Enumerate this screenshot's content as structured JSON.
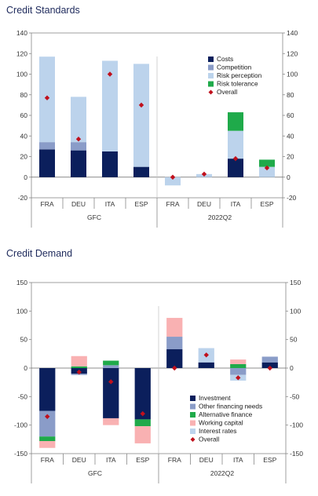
{
  "colors": {
    "navy": "#0b1f5c",
    "steel": "#8a9cc8",
    "lightblue": "#bcd3ec",
    "green": "#1faa4a",
    "pink": "#f9b1b2",
    "diamond": "#c0101c"
  },
  "chart_data": [
    {
      "type": "bar",
      "title": "Credit Standards",
      "stacked": true,
      "categories": [
        "FRA",
        "DEU",
        "ITA",
        "ESP",
        "FRA",
        "DEU",
        "ITA",
        "ESP"
      ],
      "groups": [
        {
          "label": "GFC"
        },
        {
          "label": "2022Q2"
        }
      ],
      "ylim": [
        -20,
        140
      ],
      "yticks": [
        "-20",
        "0",
        "20",
        "40",
        "60",
        "80",
        "100",
        "120",
        "140"
      ],
      "grid": false,
      "legend_position": "right",
      "series": [
        {
          "name": "Costs",
          "color": "#0b1f5c",
          "values": [
            27,
            26,
            25,
            10,
            0,
            0,
            18,
            0
          ]
        },
        {
          "name": "Competition",
          "color": "#8a9cc8",
          "values": [
            7,
            8,
            0,
            0,
            0,
            0,
            0,
            0
          ]
        },
        {
          "name": "Risk perception",
          "color": "#bcd3ec",
          "values": [
            83,
            44,
            88,
            100,
            -8,
            3,
            27,
            10
          ]
        },
        {
          "name": "Risk tolerance",
          "color": "#1faa4a",
          "values": [
            0,
            0,
            0,
            0,
            0,
            0,
            18,
            7
          ]
        }
      ],
      "overall": {
        "name": "Overall",
        "values": [
          77,
          37,
          100,
          70,
          0,
          3,
          18,
          9
        ]
      }
    },
    {
      "type": "bar",
      "title": "Credit Demand",
      "stacked": true,
      "categories": [
        "FRA",
        "DEU",
        "ITA",
        "ESP",
        "FRA",
        "DEU",
        "ITA",
        "ESP"
      ],
      "groups": [
        {
          "label": "GFC"
        },
        {
          "label": "2022Q2"
        }
      ],
      "ylim": [
        -150,
        150
      ],
      "yticks": [
        "-150",
        "-100",
        "-50",
        "0",
        "50",
        "100",
        "150"
      ],
      "grid": false,
      "legend_position": "bottom-right",
      "series": [
        {
          "name": "Investment",
          "color": "#0b1f5c",
          "values": [
            -75,
            -10,
            -88,
            -90,
            33,
            10,
            0,
            10
          ]
        },
        {
          "name": "Other financing needs",
          "color": "#8a9cc8",
          "values": [
            -45,
            -2,
            5,
            0,
            22,
            0,
            -12,
            10
          ]
        },
        {
          "name": "Alternative finance",
          "color": "#1faa4a",
          "values": [
            -8,
            3,
            8,
            -12,
            0,
            0,
            7,
            0
          ]
        },
        {
          "name": "Working capital",
          "color": "#f9b1b2",
          "values": [
            -12,
            18,
            -12,
            -30,
            33,
            0,
            8,
            0
          ]
        },
        {
          "name": "Interest rates",
          "color": "#bcd3ec",
          "values": [
            0,
            0,
            0,
            0,
            0,
            25,
            -10,
            0
          ]
        }
      ],
      "overall": {
        "name": "Overall",
        "values": [
          -85,
          -7,
          -24,
          -80,
          0,
          23,
          -17,
          0
        ]
      }
    }
  ]
}
